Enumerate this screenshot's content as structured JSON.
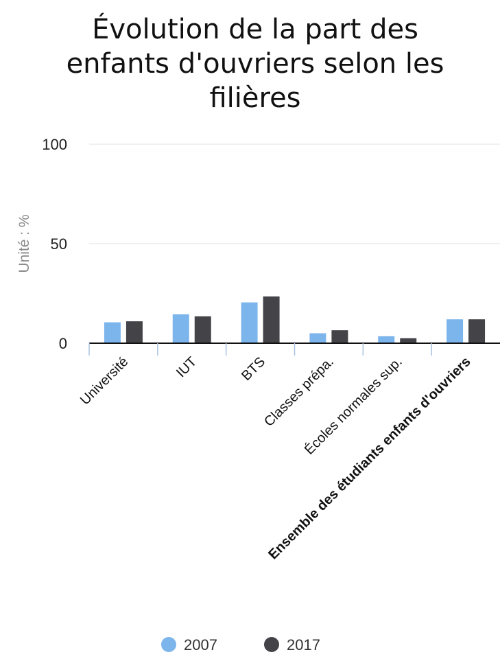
{
  "chart_data": {
    "type": "bar",
    "title_lines": [
      "Évolution de la part des",
      "enfants d'ouvriers selon les",
      "filières"
    ],
    "title": "Évolution de la part des enfants d'ouvriers selon les filières",
    "ylabel": "Unité : %",
    "ylim": [
      0,
      100
    ],
    "yticks": [
      "0",
      "50",
      "100"
    ],
    "ytick_values": [
      0,
      50,
      100
    ],
    "grid": true,
    "legend_position": "bottom",
    "categories": [
      "Université",
      "IUT",
      "BTS",
      "Classes prépa.",
      "Écoles normales sup.",
      "Ensemble des étudiants enfants d'ouvriers"
    ],
    "bold_categories": [
      5
    ],
    "series": [
      {
        "name": "2007",
        "color": "#7cb5ec",
        "values": [
          10.5,
          14.5,
          20.5,
          5,
          3.5,
          12
        ]
      },
      {
        "name": "2017",
        "color": "#434348",
        "values": [
          11,
          13.5,
          23.5,
          6.5,
          2.5,
          12
        ]
      }
    ]
  }
}
